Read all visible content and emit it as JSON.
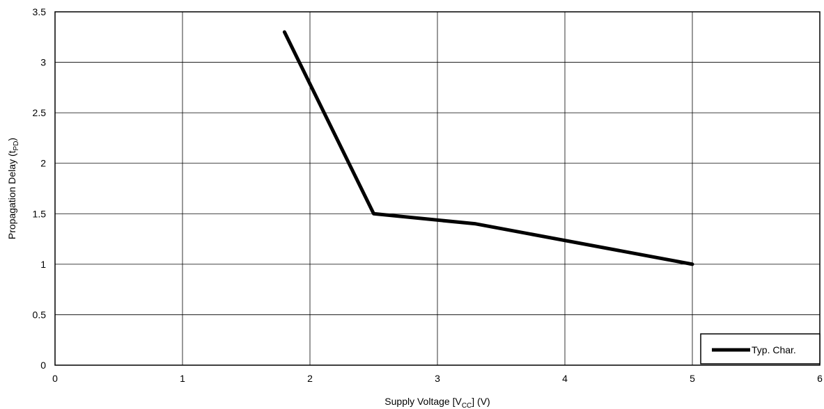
{
  "chart_data": {
    "type": "line",
    "title": "",
    "xlabel": {
      "main": "Supply Voltage [V",
      "sub": "CC",
      "tail": "] (V)"
    },
    "ylabel": {
      "main": "Propagation Delay (t",
      "sub": "PD",
      "tail": ")"
    },
    "xlim": [
      0,
      6
    ],
    "ylim": [
      0,
      3.5
    ],
    "xticks": [
      0,
      1,
      2,
      3,
      4,
      5,
      6
    ],
    "xtick_labels": [
      "0",
      "1",
      "2",
      "3",
      "4",
      "5",
      "6"
    ],
    "yticks": [
      0,
      0.5,
      1,
      1.5,
      2,
      2.5,
      3,
      3.5
    ],
    "ytick_labels": [
      "0",
      "0.5",
      "1",
      "1.5",
      "2",
      "2.5",
      "3",
      "3.5"
    ],
    "grid": true,
    "legend_position": "bottom-right",
    "series": [
      {
        "name": "Typ. Char.",
        "color": "#000000",
        "x": [
          1.8,
          2.5,
          3.3,
          5.0
        ],
        "y": [
          3.3,
          1.5,
          1.4,
          1.0
        ]
      }
    ]
  }
}
